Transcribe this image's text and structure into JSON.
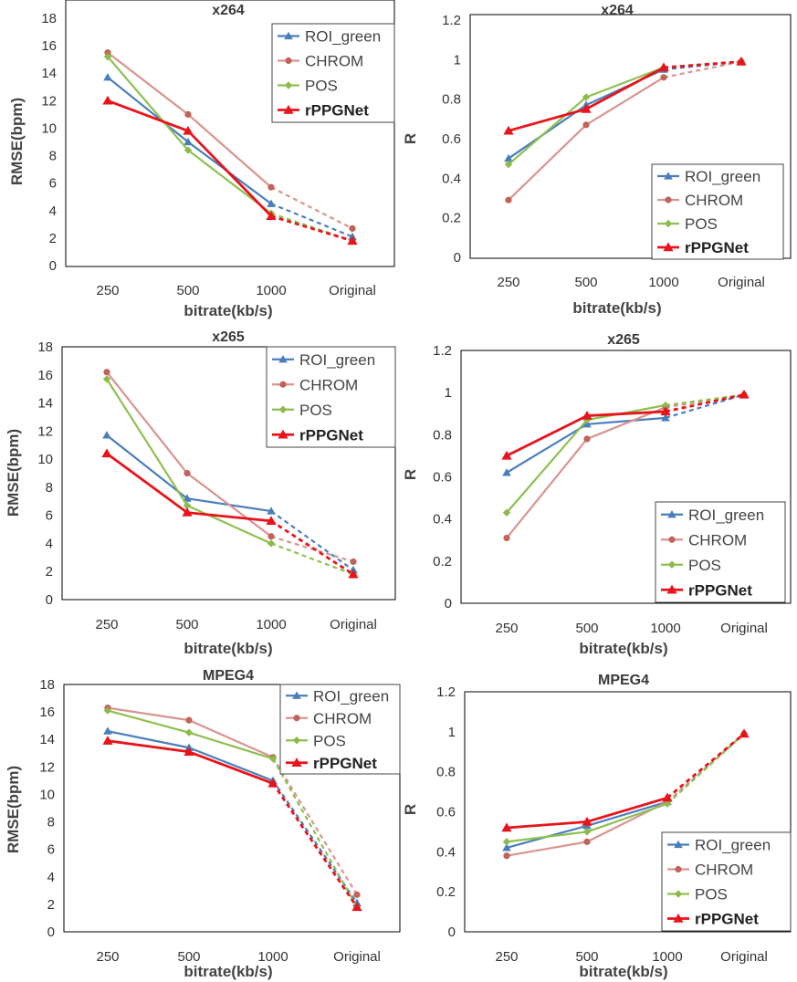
{
  "colors": {
    "ROI_green": "#4a7ebb",
    "CHROM": "#c0635b",
    "POS": "#8dbb4a",
    "rPPGNet": "#e8131b",
    "CHROM_line": "#d9948f",
    "POS_line": "#8dc04f"
  },
  "chart_data": [
    {
      "type": "line",
      "title": "x264",
      "xlabel": "bitrate(kb/s)",
      "ylabel": "RMSE(bpm)",
      "categories": [
        "250",
        "500",
        "1000",
        "Original"
      ],
      "ylim": [
        0,
        18
      ],
      "yticks": [
        "0",
        "2",
        "4",
        "6",
        "8",
        "10",
        "12",
        "14",
        "16",
        "18"
      ],
      "grid": false,
      "legend": "top-right",
      "series": [
        {
          "name": "ROI_green",
          "values": [
            13.7,
            9.0,
            4.5,
            2.1
          ]
        },
        {
          "name": "CHROM",
          "values": [
            15.5,
            11.0,
            5.7,
            2.7
          ]
        },
        {
          "name": "POS",
          "values": [
            15.2,
            8.4,
            3.8,
            1.8
          ]
        },
        {
          "name": "rPPGNet",
          "values": [
            12.0,
            9.8,
            3.6,
            1.8
          ]
        }
      ]
    },
    {
      "type": "line",
      "title": "x264",
      "xlabel": "bitrate(kb/s)",
      "ylabel": "R",
      "categories": [
        "250",
        "500",
        "1000",
        "Original"
      ],
      "ylim": [
        0,
        1.2
      ],
      "yticks": [
        "0",
        "0.2",
        "0.4",
        "0.6",
        "0.8",
        "1",
        "1.2"
      ],
      "grid": false,
      "legend": "bottom-right",
      "series": [
        {
          "name": "ROI_green",
          "values": [
            0.5,
            0.77,
            0.95,
            0.99
          ]
        },
        {
          "name": "CHROM",
          "values": [
            0.29,
            0.67,
            0.91,
            0.99
          ]
        },
        {
          "name": "POS",
          "values": [
            0.47,
            0.81,
            0.96,
            0.99
          ]
        },
        {
          "name": "rPPGNet",
          "values": [
            0.64,
            0.75,
            0.96,
            0.99
          ]
        }
      ]
    },
    {
      "type": "line",
      "title": "x265",
      "xlabel": "bitrate(kb/s)",
      "ylabel": "RMSE(bpm)",
      "categories": [
        "250",
        "500",
        "1000",
        "Original"
      ],
      "ylim": [
        0,
        18
      ],
      "yticks": [
        "0",
        "2",
        "4",
        "6",
        "8",
        "10",
        "12",
        "14",
        "16",
        "18"
      ],
      "grid": false,
      "legend": "top-right",
      "series": [
        {
          "name": "ROI_green",
          "values": [
            11.7,
            7.2,
            6.3,
            2.1
          ]
        },
        {
          "name": "CHROM",
          "values": [
            16.2,
            9.0,
            4.5,
            2.7
          ]
        },
        {
          "name": "POS",
          "values": [
            15.7,
            6.7,
            4.0,
            1.8
          ]
        },
        {
          "name": "rPPGNet",
          "values": [
            10.4,
            6.2,
            5.6,
            1.8
          ]
        }
      ]
    },
    {
      "type": "line",
      "title": "x265",
      "xlabel": "bitrate(kb/s)",
      "ylabel": "R",
      "categories": [
        "250",
        "500",
        "1000",
        "Original"
      ],
      "ylim": [
        0,
        1.2
      ],
      "yticks": [
        "0",
        "0.2",
        "0.4",
        "0.6",
        "0.8",
        "1",
        "1.2"
      ],
      "grid": false,
      "legend": "bottom-right",
      "series": [
        {
          "name": "ROI_green",
          "values": [
            0.62,
            0.85,
            0.88,
            0.99
          ]
        },
        {
          "name": "CHROM",
          "values": [
            0.31,
            0.78,
            0.93,
            0.99
          ]
        },
        {
          "name": "POS",
          "values": [
            0.43,
            0.87,
            0.94,
            0.99
          ]
        },
        {
          "name": "rPPGNet",
          "values": [
            0.7,
            0.89,
            0.91,
            0.99
          ]
        }
      ]
    },
    {
      "type": "line",
      "title": "MPEG4",
      "xlabel": "bitrate(kb/s)",
      "ylabel": "RMSE(bpm)",
      "categories": [
        "250",
        "500",
        "1000",
        "Original"
      ],
      "ylim": [
        0,
        18
      ],
      "yticks": [
        "0",
        "2",
        "4",
        "6",
        "8",
        "10",
        "12",
        "14",
        "16",
        "18"
      ],
      "grid": false,
      "legend": "top-right",
      "series": [
        {
          "name": "ROI_green",
          "values": [
            14.6,
            13.4,
            11.0,
            2.1
          ]
        },
        {
          "name": "CHROM",
          "values": [
            16.3,
            15.4,
            12.7,
            2.7
          ]
        },
        {
          "name": "POS",
          "values": [
            16.1,
            14.5,
            12.6,
            1.8
          ]
        },
        {
          "name": "rPPGNet",
          "values": [
            13.9,
            13.1,
            10.8,
            1.8
          ]
        }
      ]
    },
    {
      "type": "line",
      "title": "MPEG4",
      "xlabel": "bitrate(kb/s)",
      "ylabel": "R",
      "categories": [
        "250",
        "500",
        "1000",
        "Original"
      ],
      "ylim": [
        0,
        1.2
      ],
      "yticks": [
        "0",
        "0.2",
        "0.4",
        "0.6",
        "0.8",
        "1",
        "1.2"
      ],
      "grid": false,
      "legend": "bottom-right",
      "series": [
        {
          "name": "ROI_green",
          "values": [
            0.42,
            0.53,
            0.65,
            0.99
          ]
        },
        {
          "name": "CHROM",
          "values": [
            0.38,
            0.45,
            0.65,
            0.99
          ]
        },
        {
          "name": "POS",
          "values": [
            0.45,
            0.5,
            0.64,
            0.99
          ]
        },
        {
          "name": "rPPGNet",
          "values": [
            0.52,
            0.55,
            0.67,
            0.99
          ]
        }
      ]
    }
  ]
}
